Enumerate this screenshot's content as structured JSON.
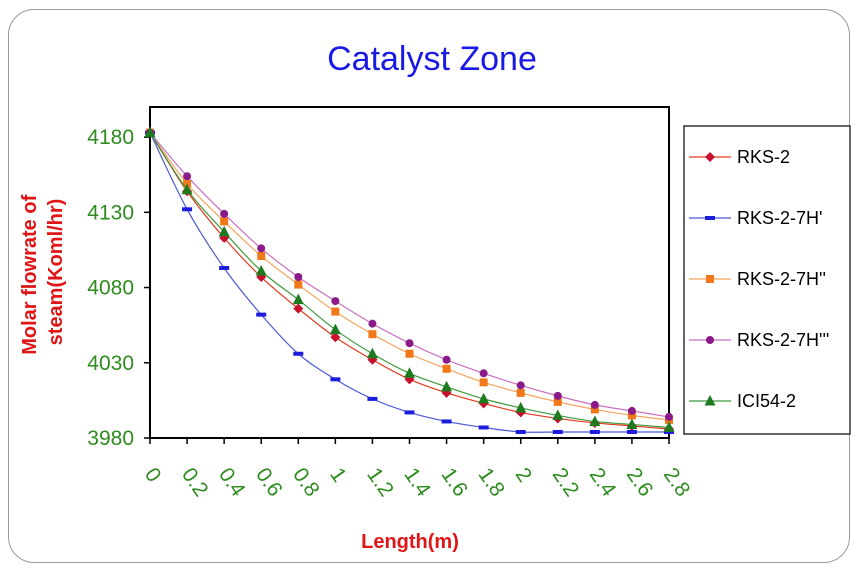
{
  "chart_data": {
    "type": "line",
    "title": "Catalyst Zone",
    "xlabel": "Length(m)",
    "ylabel": "Molar flowrate of steam(Koml/hr)",
    "x": [
      0,
      0.2,
      0.4,
      0.6,
      0.8,
      1,
      1.2,
      1.4,
      1.6,
      1.8,
      2,
      2.2,
      2.4,
      2.6,
      2.8
    ],
    "x_tick_labels": [
      "0",
      "0.2",
      "0.4",
      "0.6",
      "0.8",
      "1",
      "1.2",
      "1.4",
      "1.6",
      "1.8",
      "2",
      "2.2",
      "2.4",
      "2.6",
      "2.8"
    ],
    "y_ticks": [
      3980,
      4030,
      4080,
      4130,
      4180
    ],
    "ylim": [
      3980,
      4200
    ],
    "grid": false,
    "legend_position": "right",
    "series": [
      {
        "name": "RKS-2",
        "color": "#e33b1f",
        "marker": "diamond",
        "marker_color": "#c8102e",
        "values": [
          4183,
          4144,
          4113,
          4087,
          4066,
          4047,
          4032,
          4019,
          4010,
          4003,
          3997,
          3993,
          3990,
          3988,
          3986
        ]
      },
      {
        "name": "RKS-2-7H'",
        "color": "#4a5bd6",
        "marker": "dash",
        "marker_color": "#1c1cdc",
        "values": [
          4183,
          4132,
          4093,
          4062,
          4036,
          4019,
          4006,
          3997,
          3991,
          3987,
          3984,
          3984,
          3984,
          3984,
          3984
        ]
      },
      {
        "name": "RKS-2-7H''",
        "color": "#f5a35c",
        "marker": "square",
        "marker_color": "#f07818",
        "values": [
          4183,
          4149,
          4124,
          4101,
          4082,
          4064,
          4049,
          4036,
          4026,
          4017,
          4010,
          4004,
          3999,
          3995,
          3992
        ]
      },
      {
        "name": "RKS-2-7H'''",
        "color": "#c870c0",
        "marker": "circle",
        "marker_color": "#8a1a8a",
        "values": [
          4183,
          4154,
          4129,
          4106,
          4087,
          4071,
          4056,
          4043,
          4032,
          4023,
          4015,
          4008,
          4002,
          3998,
          3994
        ]
      },
      {
        "name": "ICI54-2",
        "color": "#3e9a3e",
        "marker": "triangle",
        "marker_color": "#1e7a1e",
        "values": [
          4183,
          4145,
          4117,
          4091,
          4072,
          4052,
          4036,
          4023,
          4014,
          4006,
          4000,
          3995,
          3991,
          3989,
          3987
        ]
      }
    ]
  }
}
